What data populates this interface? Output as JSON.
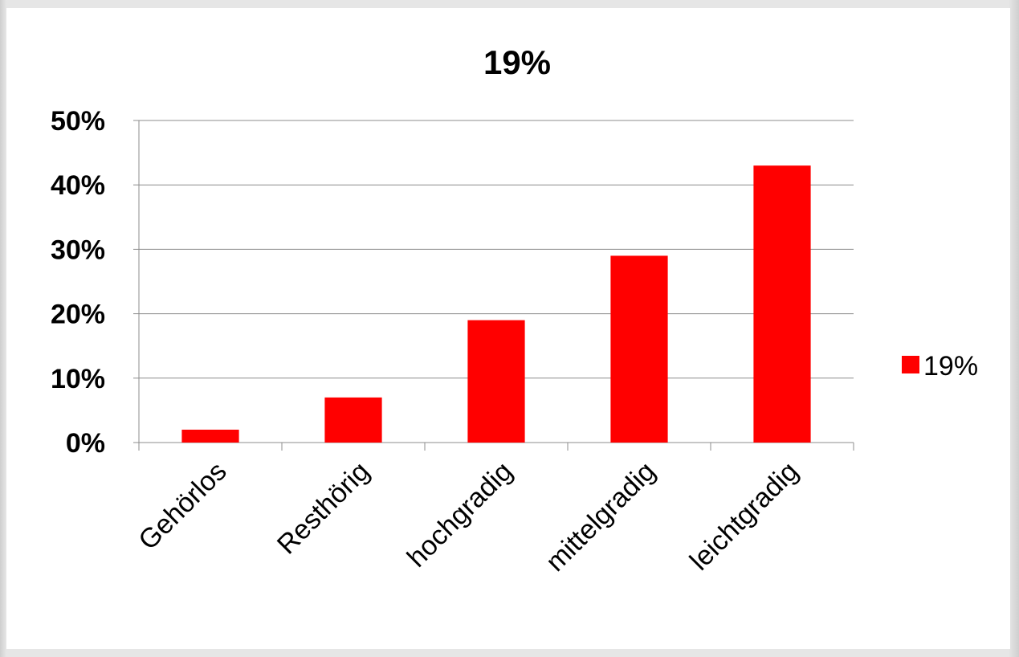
{
  "chart_data": {
    "type": "bar",
    "title": "19%",
    "categories": [
      "Gehörlos",
      "Resthörig",
      "hochgradig",
      "mittelgradig",
      "leichtgradig"
    ],
    "series": [
      {
        "name": "19%",
        "values": [
          2,
          7,
          19,
          29,
          43
        ],
        "color": "#ff0000"
      }
    ],
    "ylim": [
      0,
      50
    ],
    "y_ticks": [
      "0%",
      "10%",
      "20%",
      "30%",
      "40%",
      "50%"
    ],
    "y_tick_values": [
      0,
      10,
      20,
      30,
      40,
      50
    ],
    "grid": true,
    "legend_position": "right",
    "xlabel": "",
    "ylabel": ""
  }
}
